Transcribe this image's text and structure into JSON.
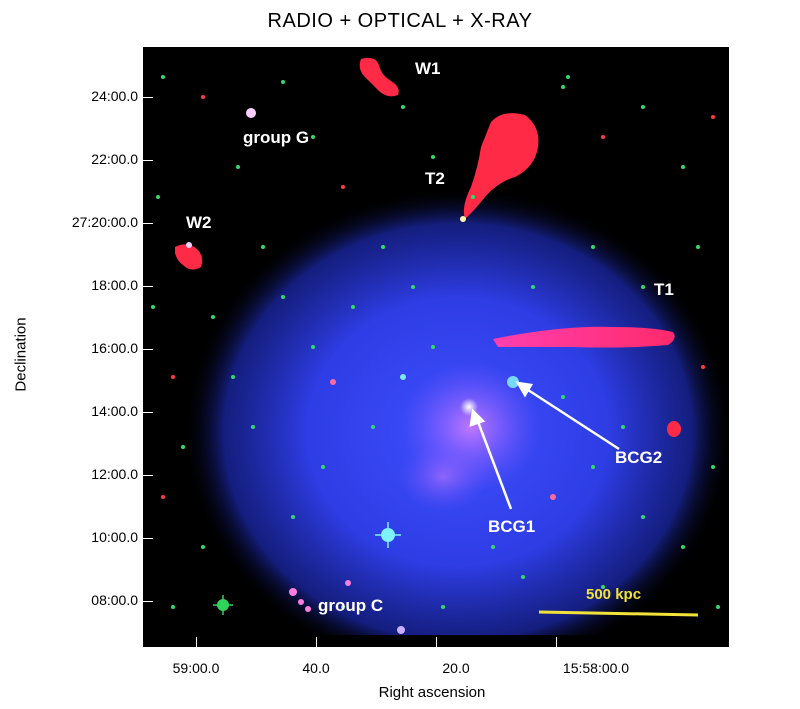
{
  "title": "RADIO + OPTICAL + X-RAY",
  "axes": {
    "x_label": "Right ascension",
    "y_label": "Declination",
    "x_ticks": [
      "59:00.0",
      "40.0",
      "20.0",
      "15:58:00.0"
    ],
    "y_ticks": [
      "24:00.0",
      "22:00.0",
      "27:20:00.0",
      "18:00.0",
      "16:00.0",
      "14:00.0",
      "12:00.0",
      "10:00.0",
      "08:00.0"
    ]
  },
  "labels": {
    "w1": "W1",
    "group_g": "group G",
    "t2": "T2",
    "w2": "W2",
    "t1": "T1",
    "bcg2": "BCG2",
    "bcg1": "BCG1",
    "group_c": "group C"
  },
  "scale_bar": {
    "label": "500 kpc"
  },
  "colors": {
    "xray": "#2b3cff",
    "radio": "#ff2a45",
    "optical": "#33d96b",
    "scale_bar": "#f2e23a",
    "annotation": "#ffffff"
  }
}
